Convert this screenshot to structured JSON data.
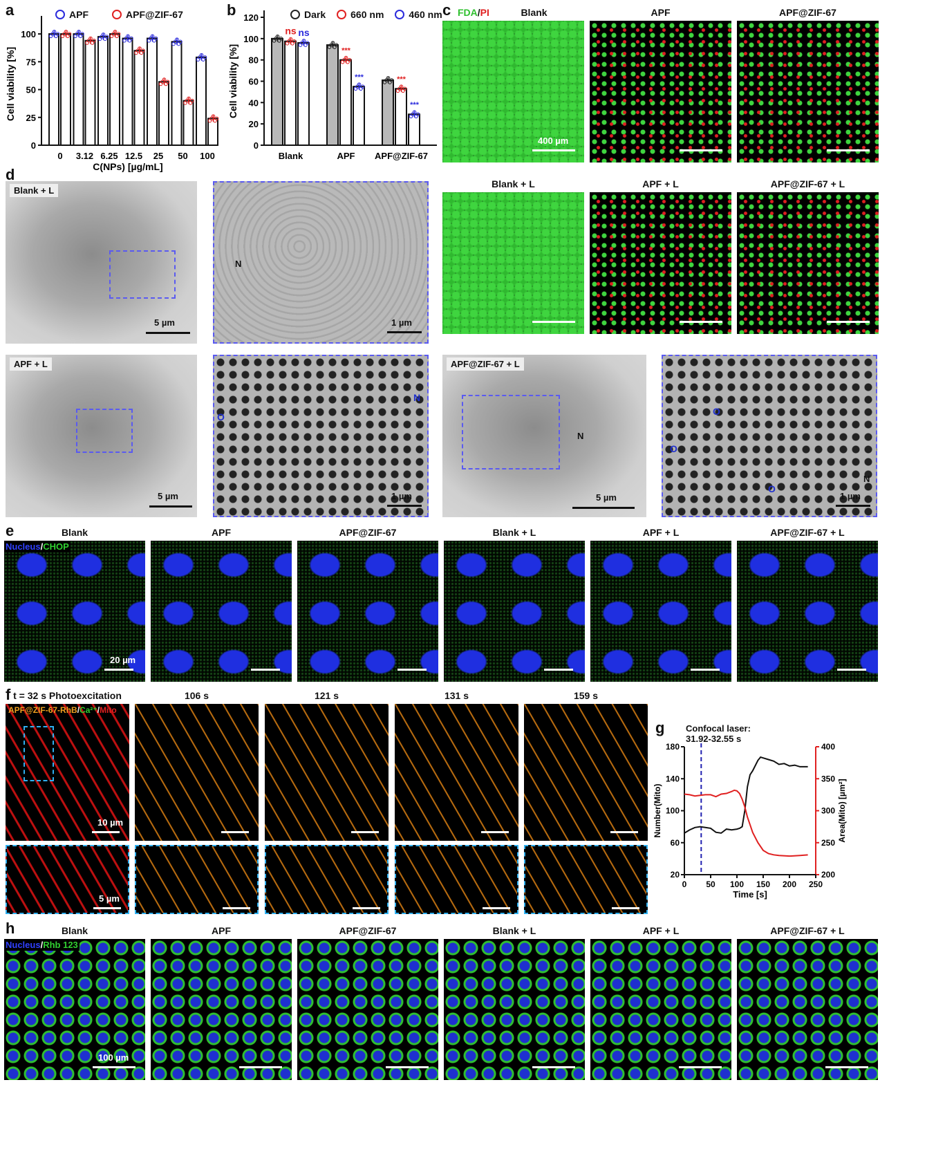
{
  "panels": {
    "a": {
      "label": "a"
    },
    "b": {
      "label": "b"
    },
    "c": {
      "label": "c"
    },
    "d": {
      "label": "d"
    },
    "e": {
      "label": "e"
    },
    "f": {
      "label": "f"
    },
    "g": {
      "label": "g"
    },
    "h": {
      "label": "h"
    }
  },
  "chart_data": [
    {
      "id": "a",
      "type": "bar",
      "title": "",
      "xlabel": "C(NPs) [µg/mL]",
      "ylabel": "Cell viability [%]",
      "ylim": [
        0,
        110
      ],
      "yticks": [
        0,
        25,
        50,
        75,
        100
      ],
      "categories": [
        "0",
        "3.12",
        "6.25",
        "12.5",
        "25",
        "50",
        "100"
      ],
      "series": [
        {
          "name": "APF",
          "color": "#2b2bdc",
          "values": [
            100,
            100,
            97.5,
            96,
            96,
            93,
            79
          ]
        },
        {
          "name": "APF@ZIF-67",
          "color": "#e02020",
          "values": [
            100,
            94,
            100,
            85,
            57,
            40,
            24
          ]
        }
      ],
      "legend": "top"
    },
    {
      "id": "b",
      "type": "bar",
      "title": "",
      "xlabel": "",
      "ylabel": "Cell viability [%]",
      "ylim": [
        0,
        120
      ],
      "yticks": [
        0,
        20,
        40,
        60,
        80,
        100,
        120
      ],
      "categories": [
        "Blank",
        "APF",
        "APF@ZIF-67"
      ],
      "series": [
        {
          "name": "Dark",
          "color": "#222222",
          "fill": "#b8b8b8",
          "values": [
            100,
            94,
            61
          ]
        },
        {
          "name": "660 nm",
          "color": "#e02020",
          "fill": "#ffffff",
          "values": [
            97.5,
            80,
            53
          ],
          "annotations": [
            "ns",
            "***",
            "***"
          ]
        },
        {
          "name": "460 nm",
          "color": "#2b2bdc",
          "fill": "#ffffff",
          "values": [
            96,
            55,
            29
          ],
          "annotations": [
            "ns",
            "***",
            "***"
          ]
        }
      ],
      "legend": "top"
    },
    {
      "id": "g",
      "type": "line",
      "annotation": "Confocal laser:\n31.92-32.55 s",
      "annotation_line1": "Confocal laser:",
      "annotation_line2": "31.92-32.55 s",
      "vline_x": 32,
      "xlabel": "Time [s]",
      "ylabel": "Number(Mito)",
      "y2label": "Area(Mito) [µm²]",
      "xlim": [
        0,
        250
      ],
      "ylim": [
        20,
        180
      ],
      "y2lim": [
        200,
        400
      ],
      "xticks": [
        0,
        50,
        100,
        150,
        200,
        250
      ],
      "yticks": [
        20,
        60,
        100,
        140,
        180
      ],
      "y2ticks": [
        200,
        250,
        300,
        350,
        400
      ],
      "series": [
        {
          "axis": "left",
          "color": "#111111",
          "x": [
            0,
            10,
            20,
            30,
            40,
            50,
            60,
            70,
            80,
            90,
            100,
            105,
            110,
            115,
            120,
            125,
            130,
            140,
            145,
            150,
            160,
            170,
            180,
            190,
            200,
            210,
            220,
            235
          ],
          "y": [
            72,
            76,
            79,
            80,
            79,
            78,
            73,
            72,
            77,
            76,
            77,
            78,
            80,
            100,
            130,
            145,
            150,
            163,
            167,
            166,
            164,
            162,
            158,
            159,
            156,
            157,
            155,
            155
          ]
        },
        {
          "axis": "right",
          "color": "#e02020",
          "x": [
            0,
            10,
            20,
            30,
            40,
            50,
            60,
            70,
            80,
            90,
            95,
            100,
            105,
            110,
            115,
            120,
            125,
            130,
            140,
            150,
            160,
            170,
            180,
            200,
            220,
            235
          ],
          "y": [
            326,
            325,
            323,
            324,
            325,
            325,
            322,
            326,
            327,
            330,
            332,
            331,
            327,
            318,
            306,
            290,
            278,
            266,
            250,
            238,
            233,
            231,
            230,
            229,
            230,
            231
          ]
        }
      ]
    }
  ],
  "c": {
    "stain_fda": "FDA",
    "stain_sep": "/",
    "stain_pi": "PI",
    "titles": [
      "Blank",
      "APF",
      "APF@ZIF-67",
      "Blank + L",
      "APF + L",
      "APF@ZIF-67 + L"
    ],
    "scale": "400 µm"
  },
  "d": {
    "titles": [
      "Blank + L",
      "APF + L",
      "APF@ZIF-67 + L"
    ],
    "scale_cell": "5 µm",
    "scale_zoom": "1 µm",
    "marks": {
      "nucleus": "N",
      "organelle": "O"
    }
  },
  "e": {
    "stain_nucleus": "Nucleus",
    "stain_sep": "/",
    "stain_chop": "CHOP",
    "titles": [
      "Blank",
      "APF",
      "APF@ZIF-67",
      "Blank + L",
      "APF + L",
      "APF@ZIF-67 + L"
    ],
    "scale": "20 µm"
  },
  "f": {
    "titles": [
      "t = 32 s Photoexcitation",
      "106 s",
      "121 s",
      "131 s",
      "159 s"
    ],
    "stain_a": "APF@ZIF-67-RhB",
    "stain_b": "Ca²⁺",
    "stain_c": "Mito",
    "scale": "10 µm",
    "scale_inset": "5 µm"
  },
  "h": {
    "stain_nucleus": "Nucleus",
    "stain_sep": "/",
    "stain_rhb": "Rhb 123",
    "titles": [
      "Blank",
      "APF",
      "APF@ZIF-67",
      "Blank + L",
      "APF + L",
      "APF@ZIF-67 + L"
    ],
    "scale": "100 µm"
  }
}
